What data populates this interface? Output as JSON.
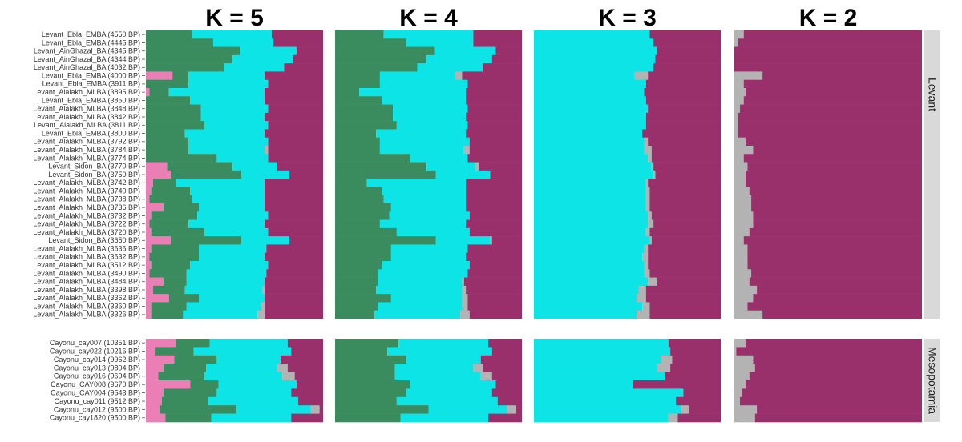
{
  "chart_data": {
    "type": "stacked-bar",
    "orientation": "horizontal",
    "xlim": [
      0,
      1
    ],
    "groups": [
      {
        "name": "Levant",
        "categories": [
          "Levant_Ebla_EMBA (4550 BP)",
          "Levant_Ebla_EMBA (4445 BP)",
          "Levant_AinGhazal_BA (4345 BP)",
          "Levant_AinGhazal_BA (4344 BP)",
          "Levant_AinGhazal_BA (4032 BP)",
          "Levant_Ebla_EMBA (4000 BP)",
          "Levant_Ebla_EMBA (3911 BP)",
          "Levant_Alalakh_MLBA (3895 BP)",
          "Levant_Ebla_EMBA (3850 BP)",
          "Levant_Alalakh_MLBA (3848 BP)",
          "Levant_Alalakh_MLBA (3842 BP)",
          "Levant_Alalakh_MLBA (3811 BP)",
          "Levant_Ebla_EMBA (3800 BP)",
          "Levant_Alalakh_MLBA (3792 BP)",
          "Levant_Alalakh_MLBA (3784 BP)",
          "Levant_Alalakh_MLBA (3774 BP)",
          "Levant_Sidon_BA (3770 BP)",
          "Levant_Sidon_BA (3750 BP)",
          "Levant_Alalakh_MLBA (3742 BP)",
          "Levant_Alalakh_MLBA (3740 BP)",
          "Levant_Alalakh_MLBA (3738 BP)",
          "Levant_Alalakh_MLBA (3736 BP)",
          "Levant_Alalakh_MLBA (3732 BP)",
          "Levant_Alalakh_MLBA (3722 BP)",
          "Levant_Alalakh_MLBA (3720 BP)",
          "Levant_Sidon_BA (3650 BP)",
          "Levant_Alalakh_MLBA (3636 BP)",
          "Levant_Alalakh_MLBA (3632 BP)",
          "Levant_Alalakh_MLBA (3512 BP)",
          "Levant_Alalakh_MLBA (3490 BP)",
          "Levant_Alalakh_MLBA (3484 BP)",
          "Levant_Alalakh_MLBA (3398 BP)",
          "Levant_Alalakh_MLBA (3362 BP)",
          "Levant_Alalakh_MLBA (3360 BP)",
          "Levant_Alalakh_MLBA (3326 BP)"
        ]
      },
      {
        "name": "Mesopotamia",
        "categories": [
          "Cayonu_cay007 (10351 BP)",
          "Cayonu_cay022 (10216 BP)",
          "Cayonu_cay014 (9962 BP)",
          "Cayonu_cay013 (9804 BP)",
          "Cayonu_cay016 (9694 BP)",
          "Cayonu_CAY008 (9670 BP)",
          "Cayonu_CAY004 (9543 BP)",
          "Cayonu_cay011 (9512 BP)",
          "Cayonu_cay012 (9500 BP)",
          "Cayonu_cay1820 (9500 BP)"
        ]
      }
    ],
    "panels": [
      {
        "title": "K = 5",
        "series": [
          {
            "color": "#e97fb5",
            "values": [
              [
                0,
                0,
                0,
                0,
                0,
                0.15,
                0,
                0.02,
                0,
                0,
                0,
                0,
                0,
                0,
                0,
                0,
                0.12,
                0.14,
                0.04,
                0.03,
                0.02,
                0.1,
                0.03,
                0.02,
                0.03,
                0.14,
                0.03,
                0.02,
                0.03,
                0.02,
                0.1,
                0.04,
                0.13,
                0.03,
                0.03
              ],
              [
                0.17,
                0.05,
                0.16,
                0.1,
                0.07,
                0.25,
                0.1,
                0.09,
                0.08,
                0.11
              ]
            ]
          },
          {
            "color": "#3a8c5e",
            "values": [
              [
                0.26,
                0.38,
                0.53,
                0.49,
                0.44,
                0.09,
                0.24,
                0.11,
                0.25,
                0.31,
                0.31,
                0.33,
                0.22,
                0.24,
                0.24,
                0.4,
                0.37,
                0.4,
                0.13,
                0.22,
                0.24,
                0.2,
                0.26,
                0.22,
                0.3,
                0.4,
                0.27,
                0.28,
                0.22,
                0.21,
                0.13,
                0.18,
                0.17,
                0.2,
                0.18
              ],
              [
                0.19,
                0.22,
                0.24,
                0.24,
                0.26,
                0.16,
                0.3,
                0.26,
                0.43,
                0.26
              ]
            ]
          },
          {
            "color": "#0ce4e6",
            "values": [
              [
                0.45,
                0.34,
                0.32,
                0.34,
                0.34,
                0.43,
                0.45,
                0.54,
                0.42,
                0.38,
                0.36,
                0.36,
                0.45,
                0.45,
                0.43,
                0.29,
                0.25,
                0.27,
                0.5,
                0.42,
                0.41,
                0.37,
                0.4,
                0.43,
                0.36,
                0.27,
                0.38,
                0.37,
                0.44,
                0.45,
                0.44,
                0.44,
                0.37,
                0.42,
                0.42
              ],
              [
                0.44,
                0.55,
                0.36,
                0.4,
                0.44,
                0.44,
                0.42,
                0.51,
                0.42,
                0.45
              ]
            ]
          },
          {
            "color": "#b3b3b3",
            "values": [
              [
                0,
                0,
                0,
                0,
                0,
                0,
                0,
                0,
                0,
                0,
                0,
                0,
                0,
                0,
                0.02,
                0,
                0,
                0,
                0,
                0,
                0,
                0,
                0,
                0,
                0,
                0,
                0,
                0,
                0,
                0,
                0,
                0.01,
                0,
                0.02,
                0.04
              ],
              [
                0,
                0,
                0,
                0.06,
                0.07,
                0,
                0,
                0,
                0.05,
                0
              ]
            ]
          },
          {
            "color": "#9a306b",
            "values": [
              [
                0.29,
                0.28,
                0.15,
                0.17,
                0.22,
                0.33,
                0.31,
                0.33,
                0.33,
                0.31,
                0.33,
                0.31,
                0.33,
                0.31,
                0.31,
                0.31,
                0.26,
                0.19,
                0.33,
                0.33,
                0.33,
                0.33,
                0.31,
                0.33,
                0.31,
                0.19,
                0.32,
                0.33,
                0.31,
                0.32,
                0.33,
                0.33,
                0.33,
                0.33,
                0.33
              ],
              [
                0.2,
                0.18,
                0.24,
                0.2,
                0.16,
                0.15,
                0.18,
                0.14,
                0.02,
                0.18
              ]
            ]
          }
        ]
      },
      {
        "title": "K = 4",
        "series": [
          {
            "color": "#3a8c5e",
            "values": [
              [
                0.26,
                0.38,
                0.53,
                0.49,
                0.44,
                0.24,
                0.24,
                0.13,
                0.25,
                0.31,
                0.31,
                0.33,
                0.22,
                0.24,
                0.24,
                0.4,
                0.49,
                0.54,
                0.17,
                0.25,
                0.26,
                0.3,
                0.29,
                0.24,
                0.33,
                0.54,
                0.3,
                0.3,
                0.25,
                0.23,
                0.23,
                0.22,
                0.3,
                0.23,
                0.21
              ],
              [
                0.34,
                0.28,
                0.38,
                0.32,
                0.32,
                0.4,
                0.38,
                0.33,
                0.5,
                0.35
              ]
            ]
          },
          {
            "color": "#0ce4e6",
            "values": [
              [
                0.48,
                0.36,
                0.33,
                0.35,
                0.35,
                0.4,
                0.47,
                0.57,
                0.45,
                0.4,
                0.39,
                0.38,
                0.48,
                0.48,
                0.45,
                0.31,
                0.26,
                0.29,
                0.53,
                0.45,
                0.44,
                0.4,
                0.43,
                0.46,
                0.39,
                0.29,
                0.41,
                0.4,
                0.47,
                0.48,
                0.45,
                0.46,
                0.38,
                0.45,
                0.46
              ],
              [
                0.48,
                0.56,
                0.4,
                0.42,
                0.46,
                0.46,
                0.46,
                0.54,
                0.42,
                0.47
              ]
            ]
          },
          {
            "color": "#b3b3b3",
            "values": [
              [
                0,
                0,
                0,
                0,
                0,
                0.04,
                0,
                0,
                0,
                0,
                0,
                0,
                0,
                0,
                0.03,
                0,
                0.02,
                0,
                0,
                0,
                0,
                0,
                0,
                0,
                0,
                0.01,
                0,
                0,
                0,
                0,
                0.01,
                0.02,
                0.03,
                0.03,
                0.05
              ],
              [
                0,
                0,
                0,
                0.05,
                0.06,
                0,
                0,
                0,
                0.05,
                0
              ]
            ]
          },
          {
            "color": "#9a306b",
            "values": [
              [
                0.26,
                0.26,
                0.14,
                0.16,
                0.21,
                0.32,
                0.29,
                0.3,
                0.3,
                0.29,
                0.3,
                0.29,
                0.3,
                0.28,
                0.28,
                0.29,
                0.23,
                0.17,
                0.3,
                0.3,
                0.3,
                0.3,
                0.28,
                0.3,
                0.28,
                0.16,
                0.29,
                0.3,
                0.28,
                0.29,
                0.31,
                0.3,
                0.29,
                0.29,
                0.28
              ],
              [
                0.18,
                0.16,
                0.22,
                0.21,
                0.16,
                0.14,
                0.16,
                0.13,
                0.03,
                0.18
              ]
            ]
          }
        ]
      },
      {
        "title": "K = 3",
        "series": [
          {
            "color": "#0ce4e6",
            "values": [
              [
                0.62,
                0.64,
                0.66,
                0.65,
                0.64,
                0.54,
                0.6,
                0.59,
                0.6,
                0.61,
                0.6,
                0.6,
                0.58,
                0.59,
                0.59,
                0.61,
                0.63,
                0.64,
                0.6,
                0.6,
                0.6,
                0.6,
                0.61,
                0.61,
                0.6,
                0.62,
                0.59,
                0.58,
                0.59,
                0.59,
                0.61,
                0.56,
                0.55,
                0.58,
                0.55
              ],
              [
                0.72,
                0.73,
                0.68,
                0.66,
                0.7,
                0.53,
                0.8,
                0.76,
                0.79,
                0.72
              ]
            ]
          },
          {
            "color": "#b3b3b3",
            "values": [
              [
                0,
                0,
                0,
                0,
                0,
                0.07,
                0,
                0,
                0,
                0,
                0,
                0,
                0,
                0.02,
                0.04,
                0.02,
                0.01,
                0.01,
                0.01,
                0.02,
                0.02,
                0.02,
                0.02,
                0.03,
                0.02,
                0.01,
                0.02,
                0.03,
                0.02,
                0.03,
                0.05,
                0.04,
                0.05,
                0.04,
                0.07
              ],
              [
                0,
                0,
                0.06,
                0.07,
                0,
                0,
                0,
                0,
                0.04,
                0.05
              ]
            ]
          },
          {
            "color": "#9a306b",
            "values": [
              [
                0.38,
                0.36,
                0.34,
                0.35,
                0.36,
                0.39,
                0.4,
                0.41,
                0.4,
                0.39,
                0.4,
                0.4,
                0.42,
                0.39,
                0.37,
                0.37,
                0.36,
                0.35,
                0.39,
                0.38,
                0.38,
                0.38,
                0.37,
                0.36,
                0.38,
                0.37,
                0.39,
                0.39,
                0.39,
                0.38,
                0.34,
                0.4,
                0.4,
                0.38,
                0.38
              ],
              [
                0.28,
                0.27,
                0.26,
                0.27,
                0.3,
                0.47,
                0.2,
                0.24,
                0.17,
                0.23
              ]
            ]
          }
        ]
      },
      {
        "title": "K = 2",
        "series": [
          {
            "color": "#b3b3b3",
            "values": [
              [
                0.05,
                0.02,
                0,
                0,
                0,
                0.15,
                0.05,
                0.06,
                0.05,
                0.03,
                0.02,
                0.02,
                0.02,
                0.06,
                0.1,
                0.05,
                0.07,
                0.06,
                0.06,
                0.08,
                0.09,
                0.09,
                0.1,
                0.1,
                0.08,
                0.05,
                0.07,
                0.07,
                0.07,
                0.09,
                0.08,
                0.12,
                0.1,
                0.07,
                0.15
              ],
              [
                0.06,
                0.01,
                0.1,
                0.11,
                0.08,
                0.06,
                0.04,
                0.03,
                0.12,
                0.11
              ]
            ]
          },
          {
            "color": "#9a306b",
            "values": [
              [
                0.95,
                0.98,
                1,
                1,
                1,
                0.85,
                0.95,
                0.94,
                0.95,
                0.97,
                0.98,
                0.98,
                0.98,
                0.94,
                0.9,
                0.95,
                0.93,
                0.94,
                0.94,
                0.92,
                0.91,
                0.91,
                0.9,
                0.9,
                0.92,
                0.95,
                0.93,
                0.93,
                0.93,
                0.91,
                0.92,
                0.88,
                0.9,
                0.93,
                0.85
              ],
              [
                0.94,
                0.99,
                0.9,
                0.89,
                0.92,
                0.94,
                0.96,
                0.97,
                0.88,
                0.89
              ]
            ]
          }
        ]
      }
    ]
  }
}
